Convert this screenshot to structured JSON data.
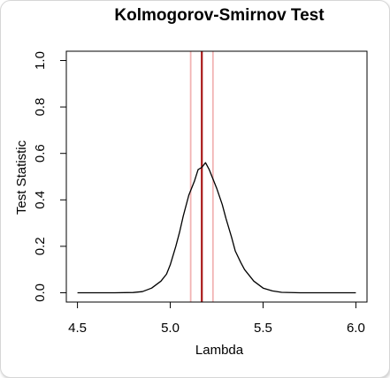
{
  "chart_data": {
    "type": "line",
    "title": "Kolmogorov-Smirnov Test",
    "xlabel": "Lambda",
    "ylabel": "Test Statistic",
    "xlim": [
      4.44,
      6.06
    ],
    "ylim": [
      -0.04,
      1.04
    ],
    "x_ticks": [
      "4.5",
      "5.0",
      "5.5",
      "6.0"
    ],
    "x_tick_values": [
      4.5,
      5.0,
      5.5,
      6.0
    ],
    "y_ticks": [
      "0.0",
      "0.2",
      "0.4",
      "0.6",
      "0.8",
      "1.0"
    ],
    "y_tick_values": [
      0.0,
      0.2,
      0.4,
      0.6,
      0.8,
      1.0
    ],
    "grid": false,
    "legend": "none",
    "series": [
      {
        "x": [
          4.5,
          4.6,
          4.7,
          4.8,
          4.85,
          4.9,
          4.95,
          4.98,
          5.0,
          5.03,
          5.05,
          5.07,
          5.1,
          5.13,
          5.15,
          5.17,
          5.19,
          5.21,
          5.23,
          5.25,
          5.28,
          5.3,
          5.33,
          5.35,
          5.38,
          5.4,
          5.45,
          5.5,
          5.55,
          5.6,
          5.7,
          5.8,
          5.9,
          6.0
        ],
        "y": [
          0.0,
          0.0,
          0.0,
          0.001,
          0.005,
          0.02,
          0.05,
          0.08,
          0.12,
          0.2,
          0.26,
          0.33,
          0.42,
          0.48,
          0.53,
          0.54,
          0.56,
          0.53,
          0.49,
          0.45,
          0.38,
          0.32,
          0.24,
          0.18,
          0.13,
          0.1,
          0.05,
          0.02,
          0.008,
          0.002,
          0.0,
          0.0,
          0.0,
          0.0
        ],
        "color": "#000000"
      }
    ],
    "vlines": [
      {
        "x": 5.17,
        "color": "#a81818",
        "role": "estimate"
      },
      {
        "x": 5.11,
        "color": "#f2b3b3",
        "role": "lower"
      },
      {
        "x": 5.23,
        "color": "#f2b3b3",
        "role": "upper"
      }
    ]
  }
}
